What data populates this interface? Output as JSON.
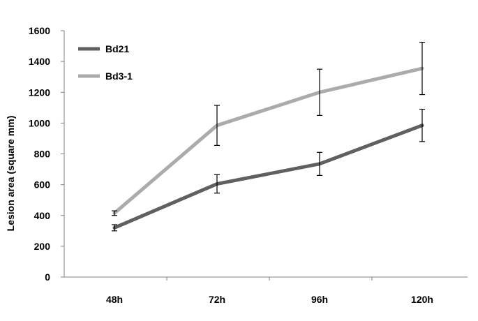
{
  "chart_data": {
    "type": "line",
    "title": "",
    "xlabel": "",
    "ylabel": "Lesion area (square mm)",
    "categories": [
      "48h",
      "72h",
      "96h",
      "120h"
    ],
    "ylim": [
      0,
      1600
    ],
    "yticks": [
      0,
      200,
      400,
      600,
      800,
      1000,
      1200,
      1400,
      1600
    ],
    "grid": false,
    "legend_position": "top-left",
    "series": [
      {
        "name": "Bd21",
        "color": "#606060",
        "values": [
          320,
          605,
          735,
          985
        ],
        "errors": [
          20,
          60,
          75,
          105
        ]
      },
      {
        "name": "Bd3-1",
        "color": "#ababab",
        "values": [
          415,
          985,
          1200,
          1355
        ],
        "errors": [
          15,
          130,
          150,
          170
        ]
      }
    ]
  }
}
